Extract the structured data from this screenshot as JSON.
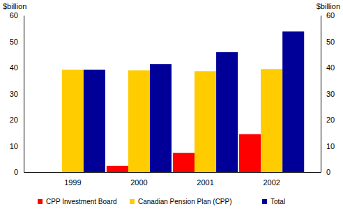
{
  "chart_data": {
    "type": "bar",
    "ylabel": "$billion",
    "y2label": "$billion",
    "categories": [
      "1999",
      "2000",
      "2001",
      "2002"
    ],
    "series": [
      {
        "name": "CPP Investment Board",
        "color": "#ff0000",
        "values": [
          0,
          2.4,
          7.3,
          14.5
        ]
      },
      {
        "name": "Canadian Pension Plan (CPP)",
        "color": "#ffcc00",
        "values": [
          39.2,
          38.9,
          38.6,
          39.4
        ]
      },
      {
        "name": "Total",
        "color": "#000099",
        "values": [
          39.2,
          41.3,
          45.9,
          53.8
        ]
      }
    ],
    "ylim": [
      0,
      60
    ],
    "yticks": [
      0,
      10,
      20,
      30,
      40,
      50,
      60
    ],
    "y2lim": [
      0,
      60
    ],
    "y2ticks": [
      0,
      10,
      20,
      30,
      40,
      50,
      60
    ],
    "grid": false,
    "legend": "bottom"
  }
}
